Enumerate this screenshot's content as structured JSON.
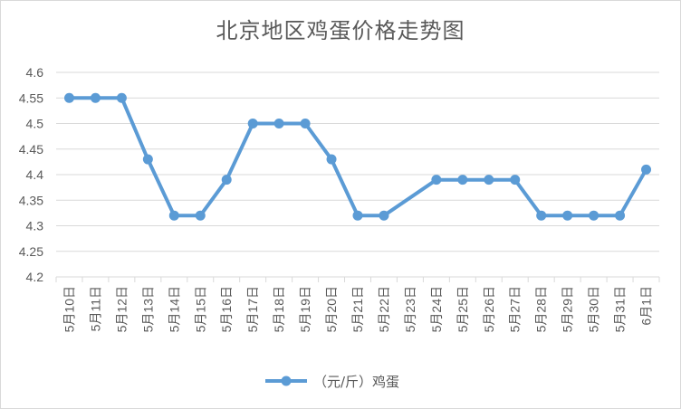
{
  "chart_data": {
    "type": "line",
    "title": "北京地区鸡蛋价格走势图",
    "xlabel": "",
    "ylabel": "",
    "ylim": [
      4.2,
      4.6
    ],
    "yticks": [
      "4.2",
      "4.25",
      "4.3",
      "4.35",
      "4.4",
      "4.45",
      "4.5",
      "4.55",
      "4.6"
    ],
    "categories": [
      "5月10日",
      "5月11日",
      "5月12日",
      "5月13日",
      "5月14日",
      "5月15日",
      "5月16日",
      "5月17日",
      "5月18日",
      "5月19日",
      "5月20日",
      "5月21日",
      "5月22日",
      "5月23日",
      "5月24日",
      "5月25日",
      "5月26日",
      "5月27日",
      "5月28日",
      "5月29日",
      "5月30日",
      "5月31日",
      "6月1日"
    ],
    "series": [
      {
        "name": "（元/斤）鸡蛋",
        "color": "#5b9bd5",
        "values": [
          4.55,
          4.55,
          4.55,
          4.43,
          4.32,
          4.32,
          4.39,
          4.5,
          4.5,
          4.5,
          4.43,
          4.32,
          4.32,
          null,
          4.39,
          4.39,
          4.39,
          4.39,
          4.32,
          4.32,
          4.32,
          4.32,
          4.41
        ]
      }
    ],
    "grid": true,
    "legend": "bottom"
  }
}
